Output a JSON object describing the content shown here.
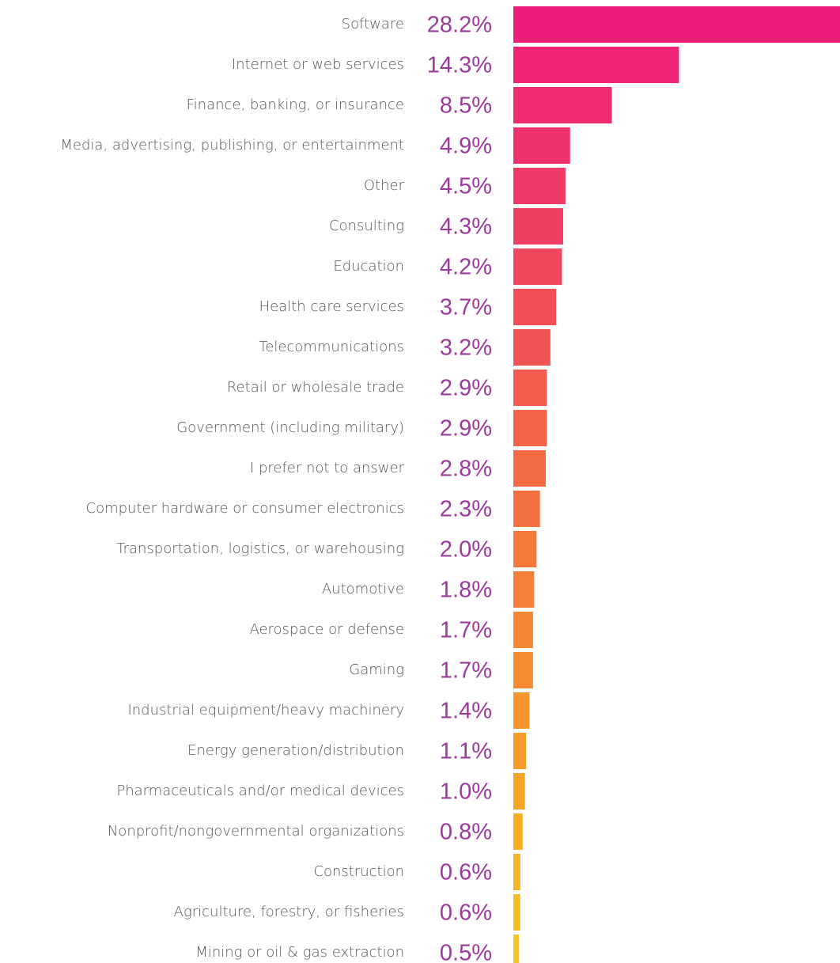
{
  "chart_data": {
    "type": "hbar",
    "categories": [
      "Software",
      "Internet or web services",
      "Finance, banking, or insurance",
      "Media, advertising, publishing, or entertainment",
      "Other",
      "Consulting",
      "Education",
      "Health care services",
      "Telecommunications",
      "Retail or wholesale trade",
      "Government (including military)",
      "I prefer not to answer",
      "Computer hardware or consumer electronics",
      "Transportation, logistics, or warehousing",
      "Automotive",
      "Aerospace or defense",
      "Gaming",
      "Industrial equipment/heavy machinery",
      "Energy generation/distribution",
      "Pharmaceuticals and/or medical devices",
      "Nonprofit/nongovernmental organizations",
      "Construction",
      "Agriculture, forestry, or fisheries",
      "Mining or oil & gas extraction"
    ],
    "values": [
      28.2,
      14.3,
      8.5,
      4.9,
      4.5,
      4.3,
      4.2,
      3.7,
      3.2,
      2.9,
      2.9,
      2.8,
      2.3,
      2.0,
      1.8,
      1.7,
      1.7,
      1.4,
      1.1,
      1.0,
      0.8,
      0.6,
      0.6,
      0.5
    ],
    "value_labels": [
      "28.2%",
      "14.3%",
      "8.5%",
      "4.9%",
      "4.5%",
      "4.3%",
      "4.2%",
      "3.7%",
      "3.2%",
      "2.9%",
      "2.9%",
      "2.8%",
      "2.3%",
      "2.0%",
      "1.8%",
      "1.7%",
      "1.7%",
      "1.4%",
      "1.1%",
      "1.0%",
      "0.8%",
      "0.6%",
      "0.6%",
      "0.5%"
    ],
    "colors": [
      "#ED1E79",
      "#EE2475",
      "#EE2B70",
      "#EF326B",
      "#EF3966",
      "#F04062",
      "#F0475D",
      "#F14E58",
      "#F15553",
      "#F25C4E",
      "#F2634A",
      "#F36A45",
      "#F37140",
      "#F4783C",
      "#F47F38",
      "#F58634",
      "#F58D30",
      "#F6952C",
      "#F69C29",
      "#F6A426",
      "#F7AC23",
      "#F7B521",
      "#F7BD20",
      "#F7C520"
    ]
  }
}
